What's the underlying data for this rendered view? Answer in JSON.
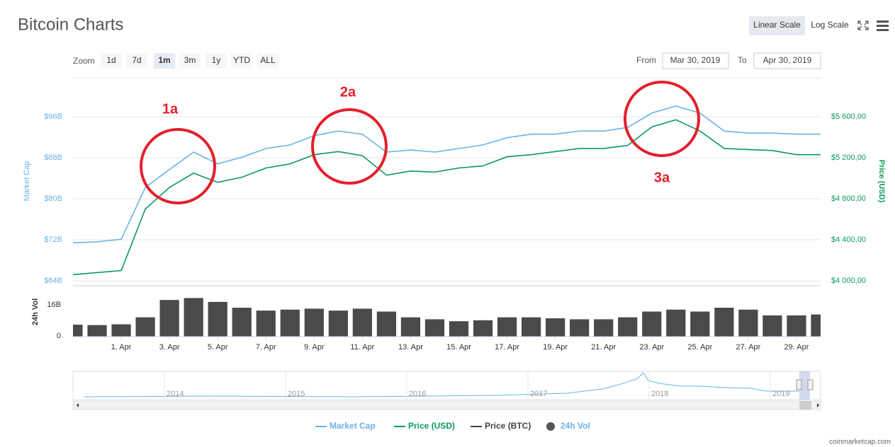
{
  "header": {
    "title": "Bitcoin Charts",
    "scale_buttons": [
      "Linear Scale",
      "Log Scale"
    ],
    "scale_selected": 0,
    "zoom_label": "Zoom",
    "zoom_buttons": [
      "1d",
      "7d",
      "1m",
      "3m",
      "1y",
      "YTD",
      "ALL"
    ],
    "zoom_selected": 2,
    "from_label": "From",
    "from_date": "Mar 30, 2019",
    "to_label": "To",
    "to_date": "Apr 30, 2019"
  },
  "chart_data": [
    {
      "type": "line",
      "x": [
        "2019-03-30",
        "2019-03-31",
        "2019-04-01",
        "2019-04-02",
        "2019-04-03",
        "2019-04-04",
        "2019-04-05",
        "2019-04-06",
        "2019-04-07",
        "2019-04-08",
        "2019-04-09",
        "2019-04-10",
        "2019-04-11",
        "2019-04-12",
        "2019-04-13",
        "2019-04-14",
        "2019-04-15",
        "2019-04-16",
        "2019-04-17",
        "2019-04-18",
        "2019-04-19",
        "2019-04-20",
        "2019-04-21",
        "2019-04-22",
        "2019-04-23",
        "2019-04-24",
        "2019-04-25",
        "2019-04-26",
        "2019-04-27",
        "2019-04-28",
        "2019-04-29",
        "2019-04-30"
      ],
      "xlim": [
        "2019-03-30",
        "2019-04-30"
      ],
      "ylim": [
        64,
        104
      ],
      "yticks": [
        {
          "value": 64,
          "label": "$64B"
        },
        {
          "value": 72,
          "label": "$72B"
        },
        {
          "value": 80,
          "label": "$80B"
        },
        {
          "value": 88,
          "label": "$88B"
        },
        {
          "value": 96,
          "label": "$96B"
        }
      ],
      "y2lim": [
        4000,
        6000
      ],
      "y2ticks": [
        {
          "value": 4000,
          "label": "$4 000,00"
        },
        {
          "value": 4400,
          "label": "$4 400,00"
        },
        {
          "value": 4800,
          "label": "$4 800,00"
        },
        {
          "value": 5200,
          "label": "$5 200,00"
        },
        {
          "value": 5600,
          "label": "$5 600,00"
        }
      ],
      "y_label": "Market Cap",
      "y2_label": "Price (USD)",
      "grid": true,
      "series": [
        {
          "name": "Market Cap",
          "color": "#6ab3e4",
          "axis": "y",
          "values": [
            71.4,
            71.6,
            72.1,
            82.2,
            85.7,
            89.1,
            86.8,
            88.1,
            89.8,
            90.5,
            92.3,
            93.2,
            92.6,
            89.1,
            89.5,
            89.1,
            89.8,
            90.5,
            91.9,
            92.6,
            92.6,
            93.2,
            93.2,
            93.9,
            96.7,
            98.1,
            96.7,
            93.2,
            92.8,
            92.8,
            92.6,
            92.6
          ]
        },
        {
          "name": "Price (USD)",
          "color": "#0b9a5b",
          "axis": "y2",
          "values": [
            4060,
            4080,
            4100,
            4700,
            4910,
            5050,
            4960,
            5010,
            5100,
            5140,
            5230,
            5260,
            5220,
            5030,
            5070,
            5060,
            5100,
            5120,
            5210,
            5230,
            5260,
            5290,
            5290,
            5320,
            5500,
            5570,
            5460,
            5290,
            5280,
            5270,
            5230,
            5230
          ]
        },
        {
          "name": "Price (BTC)",
          "color": "#434348",
          "axis": "y",
          "visible": false
        }
      ],
      "annotations": [
        "1a",
        "2a",
        "3a"
      ]
    },
    {
      "type": "bar",
      "name": "24h Vol",
      "color": "#4a4a4a",
      "y_label": "24h Vol",
      "x": [
        "2019-03-30",
        "2019-03-31",
        "2019-04-01",
        "2019-04-02",
        "2019-04-03",
        "2019-04-04",
        "2019-04-05",
        "2019-04-06",
        "2019-04-07",
        "2019-04-08",
        "2019-04-09",
        "2019-04-10",
        "2019-04-11",
        "2019-04-12",
        "2019-04-13",
        "2019-04-14",
        "2019-04-15",
        "2019-04-16",
        "2019-04-17",
        "2019-04-18",
        "2019-04-19",
        "2019-04-20",
        "2019-04-21",
        "2019-04-22",
        "2019-04-23",
        "2019-04-24",
        "2019-04-25",
        "2019-04-26",
        "2019-04-27",
        "2019-04-28",
        "2019-04-29",
        "2019-04-30"
      ],
      "values": [
        6.2,
        6.0,
        6.4,
        10,
        19,
        20,
        18,
        15,
        13.5,
        14,
        14.5,
        13.5,
        14.5,
        13,
        10,
        9,
        8,
        8.5,
        10,
        10,
        9.5,
        9,
        9,
        10,
        13,
        14,
        13,
        15,
        14,
        11,
        11,
        11.5
      ],
      "xlim": [
        "2019-03-30",
        "2019-04-30"
      ],
      "ylim": [
        0,
        26
      ],
      "yticks": [
        0,
        {
          "value": 16,
          "label": "16B"
        }
      ],
      "xticks": [
        {
          "value": "2019-04-01",
          "label": "1. Apr"
        },
        {
          "value": "2019-04-03",
          "label": "3. Apr"
        },
        {
          "value": "2019-04-05",
          "label": "5. Apr"
        },
        {
          "value": "2019-04-07",
          "label": "7. Apr"
        },
        {
          "value": "2019-04-09",
          "label": "9. Apr"
        },
        {
          "value": "2019-04-11",
          "label": "11. Apr"
        },
        {
          "value": "2019-04-13",
          "label": "13. Apr"
        },
        {
          "value": "2019-04-15",
          "label": "15. Apr"
        },
        {
          "value": "2019-04-17",
          "label": "17. Apr"
        },
        {
          "value": "2019-04-19",
          "label": "19. Apr"
        },
        {
          "value": "2019-04-21",
          "label": "21. Apr"
        },
        {
          "value": "2019-04-23",
          "label": "23. Apr"
        },
        {
          "value": "2019-04-25",
          "label": "25. Apr"
        },
        {
          "value": "2019-04-27",
          "label": "27. Apr"
        },
        {
          "value": "2019-04-29",
          "label": "29. Apr"
        }
      ]
    }
  ],
  "navigator": {
    "labels": [
      "2014",
      "2015",
      "2016",
      "2017",
      "2018",
      "2019"
    ]
  },
  "footer": {
    "credit": "coinmarketcap.com"
  }
}
